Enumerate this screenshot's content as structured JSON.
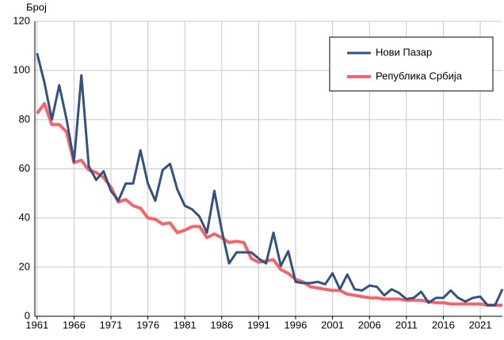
{
  "chart_data": {
    "type": "line",
    "y_label": "Број",
    "x": [
      1961,
      1962,
      1963,
      1964,
      1965,
      1966,
      1967,
      1968,
      1969,
      1970,
      1971,
      1972,
      1973,
      1974,
      1975,
      1976,
      1977,
      1978,
      1979,
      1980,
      1981,
      1982,
      1983,
      1984,
      1985,
      1986,
      1987,
      1988,
      1989,
      1990,
      1991,
      1992,
      1993,
      1994,
      1995,
      1996,
      1997,
      1998,
      1999,
      2000,
      2001,
      2002,
      2003,
      2004,
      2005,
      2006,
      2007,
      2008,
      2009,
      2010,
      2011,
      2012,
      2013,
      2014,
      2015,
      2016,
      2017,
      2018,
      2019,
      2020,
      2021,
      2022,
      2023,
      2024
    ],
    "series": [
      {
        "name": "Нови Пазар",
        "color": "#34527e",
        "values": [
          107,
          95,
          80,
          94,
          80,
          63,
          98,
          61,
          55.5,
          59,
          51,
          47,
          54,
          54,
          67.5,
          54,
          47,
          59.5,
          62,
          51.5,
          45,
          43.5,
          40.5,
          34,
          51,
          35,
          21.5,
          26,
          26,
          26,
          23.5,
          21.5,
          34,
          20.5,
          26.5,
          14,
          13.5,
          13.5,
          14,
          13,
          17.5,
          11,
          17,
          11,
          10.5,
          12.5,
          12,
          8.5,
          11,
          9.5,
          7,
          7.5,
          10,
          5.5,
          7.5,
          7.5,
          10.5,
          7.5,
          6,
          7.5,
          8,
          4.5,
          4.5,
          11
        ]
      },
      {
        "name": "Република Србија",
        "color": "#f4646b",
        "values": [
          82.5,
          86.5,
          78,
          78,
          75,
          62.5,
          63.5,
          59.5,
          58.5,
          56.5,
          52.5,
          46.5,
          47.5,
          45,
          44,
          40,
          39.5,
          37.5,
          38,
          34,
          35,
          36.5,
          36.5,
          32,
          33.5,
          32,
          30,
          30.5,
          30,
          23.5,
          22,
          22.5,
          23,
          19,
          17.5,
          15,
          14,
          12,
          11.5,
          11,
          10.5,
          10.5,
          9,
          8.5,
          8,
          7.5,
          7.5,
          7,
          7,
          7,
          6.5,
          6.5,
          6.5,
          6,
          5.5,
          5.5,
          5,
          5,
          5,
          5,
          5,
          4.5,
          4.5,
          4.5
        ]
      }
    ],
    "xlim": [
      1960.7,
      2024
    ],
    "xticks": [
      1961,
      1966,
      1971,
      1976,
      1981,
      1986,
      1991,
      1996,
      2001,
      2006,
      2011,
      2016,
      2021
    ],
    "ylim": [
      0,
      120
    ],
    "yticks": [
      0,
      20,
      40,
      60,
      80,
      100,
      120
    ],
    "grid": true,
    "legend": "upper right"
  }
}
